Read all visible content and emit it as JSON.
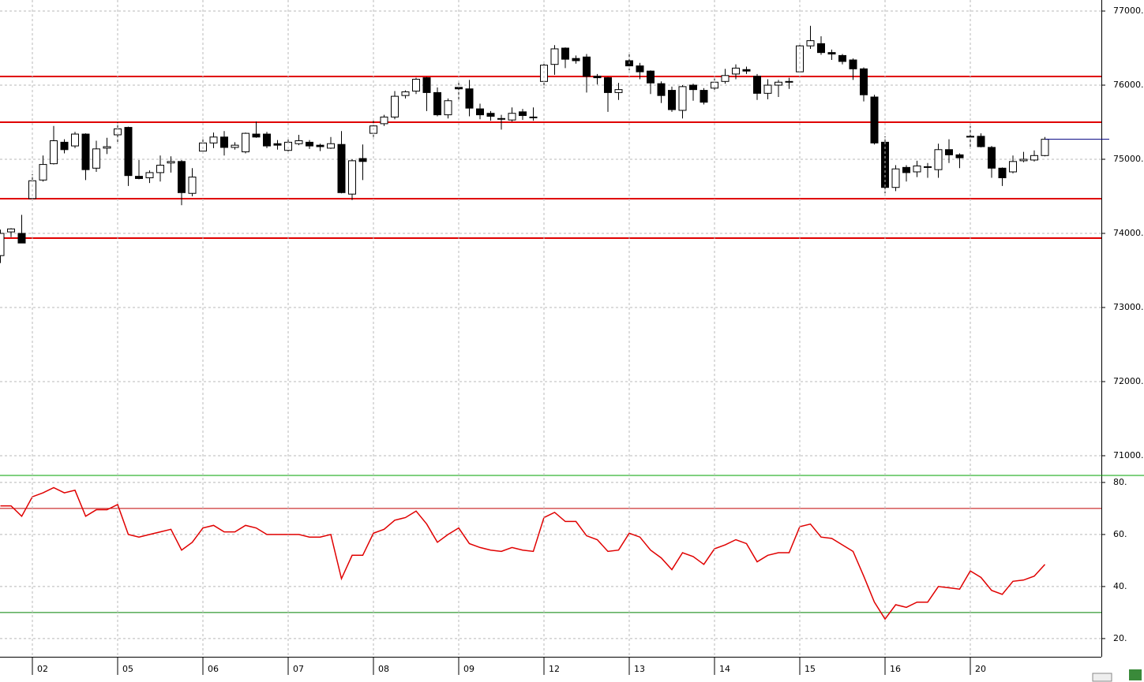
{
  "chart_data": [
    {
      "type": "candlestick",
      "ylim": [
        70766,
        77149
      ],
      "yticks": [
        {
          "value": 71000,
          "label": "71000."
        },
        {
          "value": 72000,
          "label": "72000."
        },
        {
          "value": 73000,
          "label": "73000."
        },
        {
          "value": 74000,
          "label": "74000."
        },
        {
          "value": 75000,
          "label": "75000."
        },
        {
          "value": 76000,
          "label": "76000."
        },
        {
          "value": 77000,
          "label": "77000."
        }
      ],
      "grid": true,
      "up_color": "#ffffff",
      "down_color": "#000000",
      "levels": [
        76117,
        75500,
        74468,
        73936
      ],
      "level_color": "#e00000",
      "last_price_color": "#000080",
      "open": [
        73700,
        74020,
        74000,
        74470,
        74720,
        74940,
        75230,
        75180,
        75340,
        74880,
        75150,
        75330,
        75430,
        74770,
        74750,
        74820,
        74950,
        74970,
        74540,
        75110,
        75220,
        75300,
        75160,
        75100,
        75340,
        75340,
        75210,
        75120,
        75210,
        75230,
        75190,
        75150,
        75200,
        74530,
        75010,
        75350,
        75480,
        75570,
        75860,
        75920,
        76100,
        75900,
        75600,
        75970,
        75950,
        75680,
        75620,
        75550,
        75530,
        75640,
        75570,
        76050,
        76280,
        76500,
        76360,
        76380,
        76120,
        76100,
        75900,
        76330,
        76260,
        76190,
        76020,
        75930,
        75660,
        76000,
        75930,
        75960,
        76050,
        76150,
        76210,
        76120,
        75890,
        76000,
        76050,
        76180,
        76530,
        76560,
        76440,
        76400,
        76340,
        76220,
        75840,
        75230,
        74620,
        74890,
        74830,
        74900,
        74860,
        75130,
        75060,
        75310,
        75310,
        75160,
        74880,
        74830,
        74980,
        74990,
        75050
      ],
      "high": [
        74050,
        74070,
        74250,
        74800,
        75050,
        75450,
        75270,
        75370,
        75350,
        75250,
        75290,
        75500,
        75440,
        74990,
        74850,
        75050,
        75040,
        74990,
        74880,
        75300,
        75360,
        75380,
        75230,
        75360,
        75510,
        75370,
        75260,
        75270,
        75330,
        75260,
        75210,
        75300,
        75380,
        75000,
        75200,
        75520,
        75600,
        75920,
        75930,
        76100,
        76110,
        75970,
        75820,
        76060,
        76070,
        75750,
        75650,
        75600,
        75700,
        75680,
        75700,
        76320,
        76540,
        76510,
        76400,
        76420,
        76150,
        76110,
        76030,
        76420,
        76300,
        76200,
        76050,
        75980,
        76000,
        76020,
        75960,
        76090,
        76220,
        76280,
        76250,
        76150,
        76080,
        76070,
        76100,
        76550,
        76800,
        76660,
        76480,
        76420,
        76360,
        76240,
        75870,
        75310,
        74920,
        74920,
        74980,
        74950,
        75210,
        75270,
        75080,
        75450,
        75350,
        75180,
        74890,
        75050,
        75100,
        75120,
        75300
      ],
      "low": [
        73600,
        73950,
        73870,
        74450,
        74700,
        74930,
        75080,
        75150,
        74720,
        74830,
        75070,
        75220,
        74640,
        74730,
        74680,
        74700,
        74820,
        74380,
        74500,
        75090,
        75150,
        75050,
        75130,
        75080,
        75290,
        75150,
        75130,
        75080,
        75190,
        75140,
        75110,
        75140,
        74540,
        74450,
        74720,
        75300,
        75450,
        75540,
        75820,
        75880,
        75650,
        75580,
        75550,
        75780,
        75580,
        75540,
        75520,
        75400,
        75510,
        75530,
        75520,
        75960,
        76140,
        76230,
        76290,
        75900,
        76010,
        75640,
        75800,
        76200,
        76080,
        75880,
        75760,
        75640,
        75550,
        75790,
        75740,
        75930,
        76020,
        76080,
        76150,
        75800,
        75810,
        75840,
        75950,
        76160,
        76490,
        76410,
        76340,
        76280,
        76070,
        75780,
        75200,
        74540,
        74570,
        74700,
        74760,
        74750,
        74750,
        74950,
        74880,
        75150,
        75160,
        74750,
        74640,
        74810,
        74960,
        74970,
        75040
      ],
      "close": [
        74000,
        74060,
        73870,
        74710,
        74930,
        75250,
        75130,
        75340,
        74860,
        75140,
        75170,
        75410,
        74780,
        74740,
        74820,
        74920,
        74970,
        74550,
        74760,
        75220,
        75300,
        75160,
        75190,
        75350,
        75300,
        75180,
        75190,
        75230,
        75250,
        75180,
        75170,
        75210,
        74550,
        74980,
        74970,
        75450,
        75570,
        75850,
        75910,
        76080,
        75900,
        75600,
        75790,
        75950,
        75690,
        75600,
        75580,
        75540,
        75620,
        75590,
        75560,
        76270,
        76490,
        76350,
        76330,
        76120,
        76100,
        75900,
        75940,
        76260,
        76180,
        76030,
        75860,
        75670,
        75980,
        75940,
        75770,
        76040,
        76130,
        76230,
        76190,
        75890,
        76000,
        76040,
        76040,
        76530,
        76600,
        76440,
        76420,
        76320,
        76220,
        75870,
        75220,
        74620,
        74870,
        74820,
        74910,
        74890,
        75130,
        75060,
        75020,
        75300,
        75170,
        74880,
        74750,
        74970,
        75000,
        75050,
        75270
      ]
    },
    {
      "type": "line",
      "ylim": [
        13,
        82.7
      ],
      "yticks": [
        {
          "value": 20,
          "label": "20."
        },
        {
          "value": 40,
          "label": "40."
        },
        {
          "value": 60,
          "label": "60."
        },
        {
          "value": 80,
          "label": "80."
        }
      ],
      "levels": [
        70,
        30
      ],
      "level_colors": [
        "#c00000",
        "#008000"
      ],
      "categories": [
        null,
        null,
        null,
        "02",
        null,
        null,
        null,
        null,
        null,
        null,
        null,
        "05",
        null,
        null,
        null,
        null,
        null,
        null,
        null,
        "06",
        null,
        null,
        null,
        null,
        null,
        null,
        null,
        "07",
        null,
        null,
        null,
        null,
        null,
        null,
        null,
        "08",
        null,
        null,
        null,
        null,
        null,
        null,
        null,
        "09",
        null,
        null,
        null,
        null,
        null,
        null,
        null,
        "12",
        null,
        null,
        null,
        null,
        null,
        null,
        null,
        "13",
        null,
        null,
        null,
        null,
        null,
        null,
        null,
        "14",
        null,
        null,
        null,
        null,
        null,
        null,
        null,
        "15",
        null,
        null,
        null,
        null,
        null,
        null,
        null,
        "16",
        null,
        null,
        null,
        null,
        null,
        null,
        null,
        "20",
        null,
        null,
        null,
        null,
        null,
        null,
        null
      ],
      "series": [
        {
          "color": "#e00000",
          "values": [
            71,
            71,
            67,
            74.5,
            76,
            78,
            76,
            77,
            67,
            69.5,
            69.5,
            71.5,
            60,
            59,
            60,
            61,
            62,
            54,
            57,
            62.5,
            63.5,
            61,
            61,
            63.5,
            62.5,
            60,
            60,
            60,
            60,
            59,
            59,
            60,
            43,
            52,
            52,
            60.5,
            62,
            65.5,
            66.5,
            69,
            64,
            57,
            60,
            62.5,
            56.5,
            55,
            54,
            53.5,
            55,
            54,
            53.5,
            66.5,
            68.5,
            65,
            65,
            59.5,
            58,
            53.5,
            54,
            60.5,
            59,
            54,
            51,
            46.5,
            53,
            51.5,
            48.5,
            54.5,
            56,
            58,
            56.5,
            49.5,
            52,
            53,
            53,
            63,
            64,
            59,
            58.5,
            56,
            53.5,
            44,
            34,
            27.5,
            33,
            32,
            34,
            34,
            40,
            39.5,
            39,
            46,
            43.5,
            38.5,
            37,
            42,
            42.5,
            44,
            48.5
          ]
        }
      ]
    }
  ]
}
